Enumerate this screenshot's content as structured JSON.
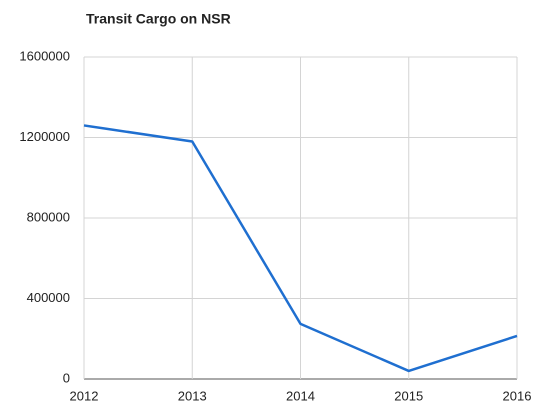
{
  "chart_data": {
    "type": "line",
    "title": "Transit Cargo on NSR",
    "x": [
      2012,
      2013,
      2014,
      2015,
      2016
    ],
    "series": [
      {
        "name": "Transit Cargo",
        "color": "#1f6fd0",
        "values": [
          1260000,
          1180000,
          274000,
          40000,
          214000
        ]
      }
    ],
    "xlim": [
      2012,
      2016
    ],
    "xticks": [
      2012,
      2013,
      2014,
      2015,
      2016
    ],
    "ylim": [
      0,
      1600000
    ],
    "yticks": [
      0,
      400000,
      800000,
      1200000,
      1600000
    ],
    "grid": true
  }
}
